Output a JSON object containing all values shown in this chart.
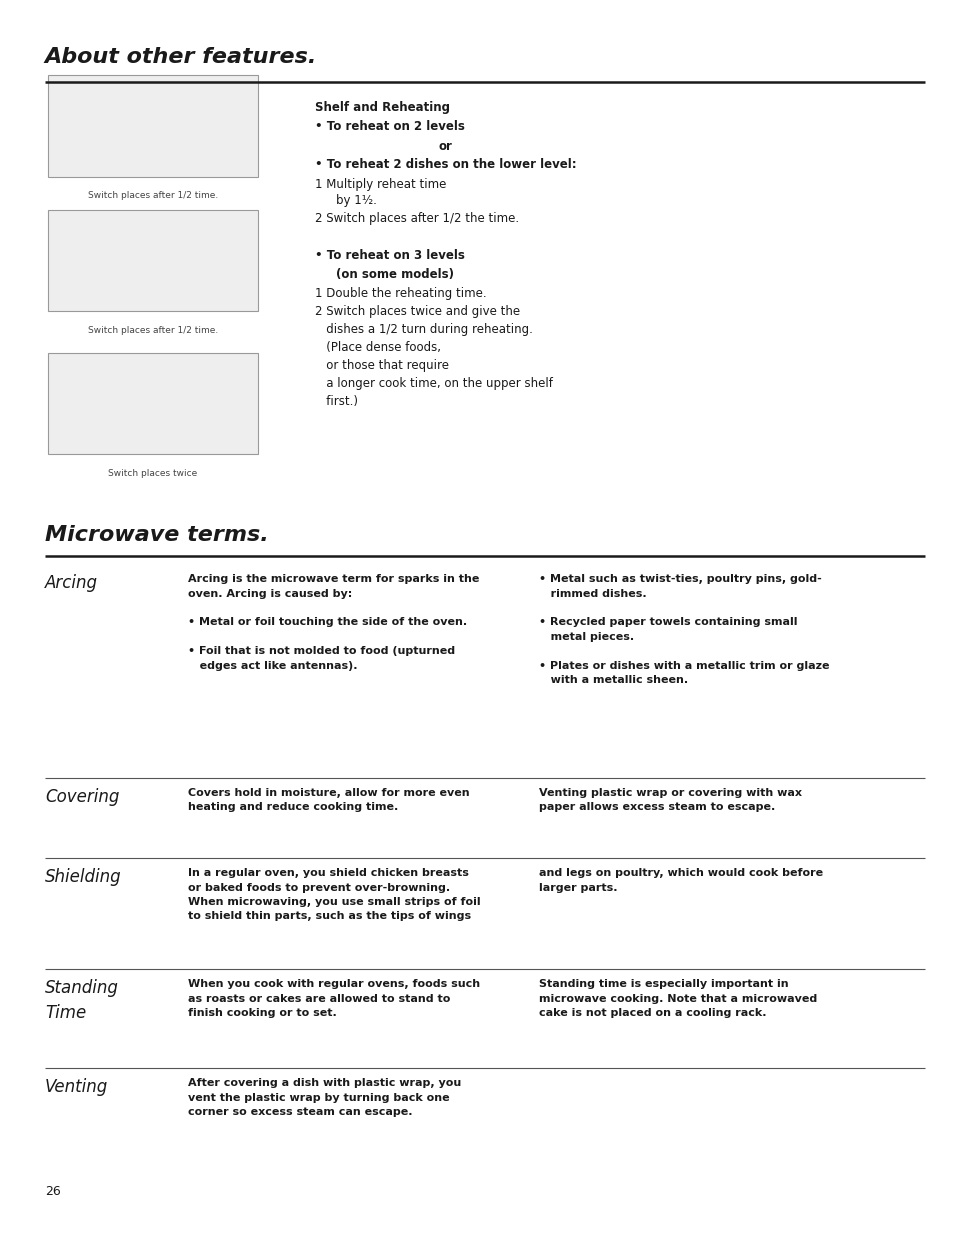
{
  "bg_color": "#ffffff",
  "text_color": "#1a1a1a",
  "page_width": 9.54,
  "page_height": 12.35,
  "top_section_title": "About other features.",
  "microwave_section_title": "Microwave terms.",
  "page_number": "26",
  "microwave_rows": [
    {
      "term": "Arcing",
      "col2": "Arcing is the microwave term for sparks in the\noven. Arcing is caused by:\n\n• Metal or foil touching the side of the oven.\n\n• Foil that is not molded to food (upturned\n   edges act like antennas).",
      "col3": "• Metal such as twist-ties, poultry pins, gold-\n   rimmed dishes.\n\n• Recycled paper towels containing small\n   metal pieces.\n\n• Plates or dishes with a metallic trim or glaze\n   with a metallic sheen."
    },
    {
      "term": "Covering",
      "col2": "Covers hold in moisture, allow for more even\nheating and reduce cooking time.",
      "col3": "Venting plastic wrap or covering with wax\npaper allows excess steam to escape."
    },
    {
      "term": "Shielding",
      "col2": "In a regular oven, you shield chicken breasts\nor baked foods to prevent over-browning.\nWhen microwaving, you use small strips of foil\nto shield thin parts, such as the tips of wings",
      "col3": "and legs on poultry, which would cook before\nlarger parts."
    },
    {
      "term": "Standing\nTime",
      "col2": "When you cook with regular ovens, foods such\nas roasts or cakes are allowed to stand to\nfinish cooking or to set.",
      "col3": "Standing time is especially important in\nmicrowave cooking. Note that a microwaved\ncake is not placed on a cooling rack."
    },
    {
      "term": "Venting",
      "col2": "After covering a dish with plastic wrap, you\nvent the plastic wrap by turning back one\ncorner so excess steam can escape.",
      "col3": ""
    }
  ]
}
